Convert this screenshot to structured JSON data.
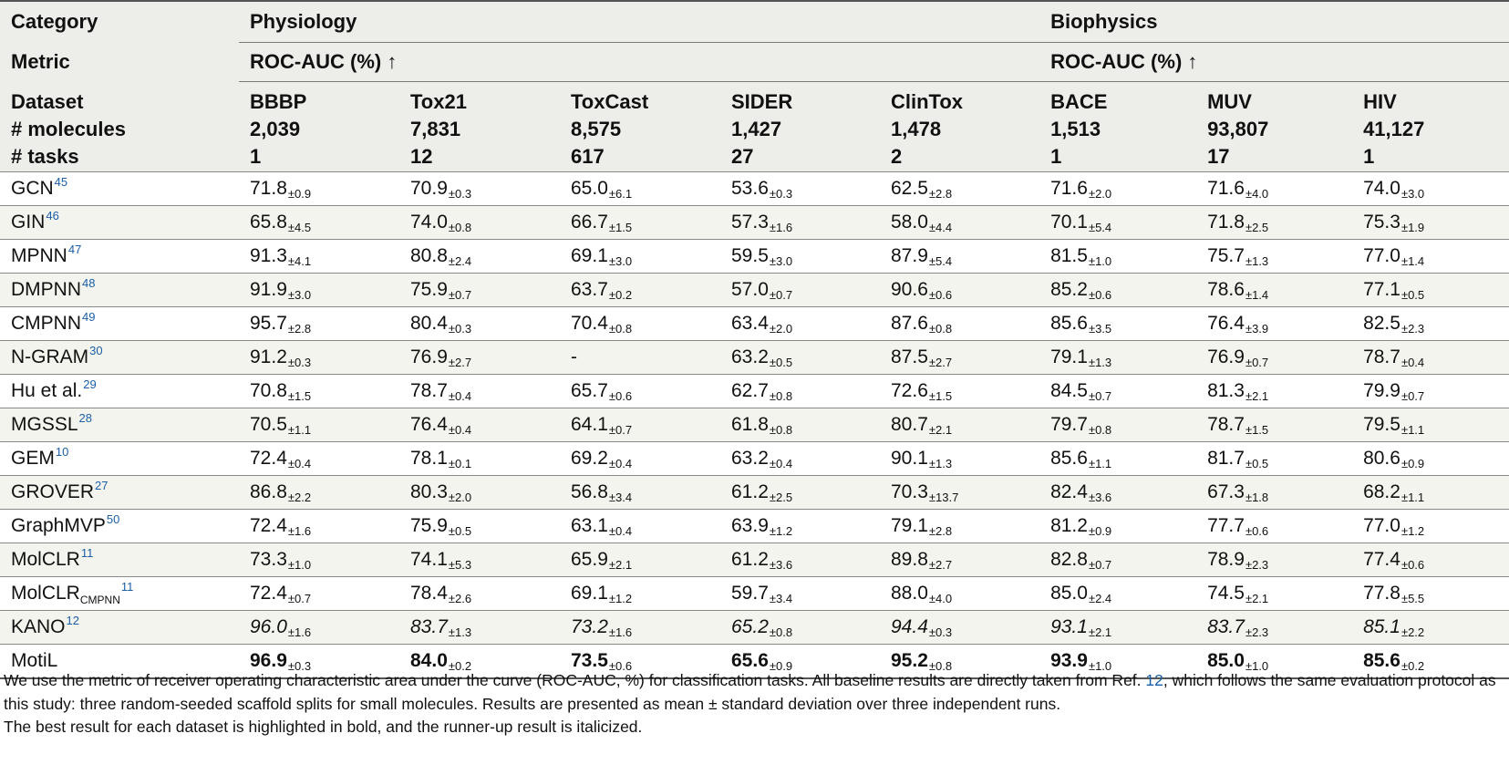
{
  "header": {
    "category_label": "Category",
    "metric_label": "Metric",
    "dataset_label": "Dataset",
    "molecules_label": "# molecules",
    "tasks_label": "# tasks",
    "groups": [
      {
        "name": "Physiology",
        "metric": "ROC-AUC (%) ↑"
      },
      {
        "name": "Biophysics",
        "metric": "ROC-AUC (%) ↑"
      }
    ],
    "datasets": [
      {
        "name": "BBBP",
        "molecules": "2,039",
        "tasks": "1"
      },
      {
        "name": "Tox21",
        "molecules": "7,831",
        "tasks": "12"
      },
      {
        "name": "ToxCast",
        "molecules": "8,575",
        "tasks": "617"
      },
      {
        "name": "SIDER",
        "molecules": "1,427",
        "tasks": "27"
      },
      {
        "name": "ClinTox",
        "molecules": "1,478",
        "tasks": "2"
      },
      {
        "name": "BACE",
        "molecules": "1,513",
        "tasks": "1"
      },
      {
        "name": "MUV",
        "molecules": "93,807",
        "tasks": "17"
      },
      {
        "name": "HIV",
        "molecules": "41,127",
        "tasks": "1"
      }
    ]
  },
  "rows": [
    {
      "model": "GCN",
      "sub": "",
      "ref": "45",
      "cells": [
        [
          "71.8",
          "±0.9"
        ],
        [
          "70.9",
          "±0.3"
        ],
        [
          "65.0",
          "±6.1"
        ],
        [
          "53.6",
          "±0.3"
        ],
        [
          "62.5",
          "±2.8"
        ],
        [
          "71.6",
          "±2.0"
        ],
        [
          "71.6",
          "±4.0"
        ],
        [
          "74.0",
          "±3.0"
        ]
      ]
    },
    {
      "model": "GIN",
      "sub": "",
      "ref": "46",
      "cells": [
        [
          "65.8",
          "±4.5"
        ],
        [
          "74.0",
          "±0.8"
        ],
        [
          "66.7",
          "±1.5"
        ],
        [
          "57.3",
          "±1.6"
        ],
        [
          "58.0",
          "±4.4"
        ],
        [
          "70.1",
          "±5.4"
        ],
        [
          "71.8",
          "±2.5"
        ],
        [
          "75.3",
          "±1.9"
        ]
      ]
    },
    {
      "model": "MPNN",
      "sub": "",
      "ref": "47",
      "cells": [
        [
          "91.3",
          "±4.1"
        ],
        [
          "80.8",
          "±2.4"
        ],
        [
          "69.1",
          "±3.0"
        ],
        [
          "59.5",
          "±3.0"
        ],
        [
          "87.9",
          "±5.4"
        ],
        [
          "81.5",
          "±1.0"
        ],
        [
          "75.7",
          "±1.3"
        ],
        [
          "77.0",
          "±1.4"
        ]
      ]
    },
    {
      "model": "DMPNN",
      "sub": "",
      "ref": "48",
      "cells": [
        [
          "91.9",
          "±3.0"
        ],
        [
          "75.9",
          "±0.7"
        ],
        [
          "63.7",
          "±0.2"
        ],
        [
          "57.0",
          "±0.7"
        ],
        [
          "90.6",
          "±0.6"
        ],
        [
          "85.2",
          "±0.6"
        ],
        [
          "78.6",
          "±1.4"
        ],
        [
          "77.1",
          "±0.5"
        ]
      ]
    },
    {
      "model": "CMPNN",
      "sub": "",
      "ref": "49",
      "cells": [
        [
          "95.7",
          "±2.8"
        ],
        [
          "80.4",
          "±0.3"
        ],
        [
          "70.4",
          "±0.8"
        ],
        [
          "63.4",
          "±2.0"
        ],
        [
          "87.6",
          "±0.8"
        ],
        [
          "85.6",
          "±3.5"
        ],
        [
          "76.4",
          "±3.9"
        ],
        [
          "82.5",
          "±2.3"
        ]
      ]
    },
    {
      "model": "N-GRAM",
      "sub": "",
      "ref": "30",
      "cells": [
        [
          "91.2",
          "±0.3"
        ],
        [
          "76.9",
          "±2.7"
        ],
        [
          "-",
          ""
        ],
        [
          "63.2",
          "±0.5"
        ],
        [
          "87.5",
          "±2.7"
        ],
        [
          "79.1",
          "±1.3"
        ],
        [
          "76.9",
          "±0.7"
        ],
        [
          "78.7",
          "±0.4"
        ]
      ]
    },
    {
      "model": "Hu et al.",
      "sub": "",
      "ref": "29",
      "cells": [
        [
          "70.8",
          "±1.5"
        ],
        [
          "78.7",
          "±0.4"
        ],
        [
          "65.7",
          "±0.6"
        ],
        [
          "62.7",
          "±0.8"
        ],
        [
          "72.6",
          "±1.5"
        ],
        [
          "84.5",
          "±0.7"
        ],
        [
          "81.3",
          "±2.1"
        ],
        [
          "79.9",
          "±0.7"
        ]
      ]
    },
    {
      "model": "MGSSL",
      "sub": "",
      "ref": "28",
      "cells": [
        [
          "70.5",
          "±1.1"
        ],
        [
          "76.4",
          "±0.4"
        ],
        [
          "64.1",
          "±0.7"
        ],
        [
          "61.8",
          "±0.8"
        ],
        [
          "80.7",
          "±2.1"
        ],
        [
          "79.7",
          "±0.8"
        ],
        [
          "78.7",
          "±1.5"
        ],
        [
          "79.5",
          "±1.1"
        ]
      ]
    },
    {
      "model": "GEM",
      "sub": "",
      "ref": "10",
      "cells": [
        [
          "72.4",
          "±0.4"
        ],
        [
          "78.1",
          "±0.1"
        ],
        [
          "69.2",
          "±0.4"
        ],
        [
          "63.2",
          "±0.4"
        ],
        [
          "90.1",
          "±1.3"
        ],
        [
          "85.6",
          "±1.1"
        ],
        [
          "81.7",
          "±0.5"
        ],
        [
          "80.6",
          "±0.9"
        ]
      ]
    },
    {
      "model": "GROVER",
      "sub": "",
      "ref": "27",
      "cells": [
        [
          "86.8",
          "±2.2"
        ],
        [
          "80.3",
          "±2.0"
        ],
        [
          "56.8",
          "±3.4"
        ],
        [
          "61.2",
          "±2.5"
        ],
        [
          "70.3",
          "±13.7"
        ],
        [
          "82.4",
          "±3.6"
        ],
        [
          "67.3",
          "±1.8"
        ],
        [
          "68.2",
          "±1.1"
        ]
      ]
    },
    {
      "model": "GraphMVP",
      "sub": "",
      "ref": "50",
      "cells": [
        [
          "72.4",
          "±1.6"
        ],
        [
          "75.9",
          "±0.5"
        ],
        [
          "63.1",
          "±0.4"
        ],
        [
          "63.9",
          "±1.2"
        ],
        [
          "79.1",
          "±2.8"
        ],
        [
          "81.2",
          "±0.9"
        ],
        [
          "77.7",
          "±0.6"
        ],
        [
          "77.0",
          "±1.2"
        ]
      ]
    },
    {
      "model": "MolCLR",
      "sub": "",
      "ref": "11",
      "cells": [
        [
          "73.3",
          "±1.0"
        ],
        [
          "74.1",
          "±5.3"
        ],
        [
          "65.9",
          "±2.1"
        ],
        [
          "61.2",
          "±3.6"
        ],
        [
          "89.8",
          "±2.7"
        ],
        [
          "82.8",
          "±0.7"
        ],
        [
          "78.9",
          "±2.3"
        ],
        [
          "77.4",
          "±0.6"
        ]
      ]
    },
    {
      "model": "MolCLR",
      "sub": "CMPNN",
      "ref": "11",
      "cells": [
        [
          "72.4",
          "±0.7"
        ],
        [
          "78.4",
          "±2.6"
        ],
        [
          "69.1",
          "±1.2"
        ],
        [
          "59.7",
          "±3.4"
        ],
        [
          "88.0",
          "±4.0"
        ],
        [
          "85.0",
          "±2.4"
        ],
        [
          "74.5",
          "±2.1"
        ],
        [
          "77.8",
          "±5.5"
        ]
      ]
    },
    {
      "model": "KANO",
      "sub": "",
      "ref": "12",
      "style": "ital",
      "cells": [
        [
          "96.0",
          "±1.6"
        ],
        [
          "83.7",
          "±1.3"
        ],
        [
          "73.2",
          "±1.6"
        ],
        [
          "65.2",
          "±0.8"
        ],
        [
          "94.4",
          "±0.3"
        ],
        [
          "93.1",
          "±2.1"
        ],
        [
          "83.7",
          "±2.3"
        ],
        [
          "85.1",
          "±2.2"
        ]
      ]
    },
    {
      "model": "MotiL",
      "sub": "",
      "ref": "",
      "style": "bold",
      "cells": [
        [
          "96.9",
          "±0.3"
        ],
        [
          "84.0",
          "±0.2"
        ],
        [
          "73.5",
          "±0.6"
        ],
        [
          "65.6",
          "±0.9"
        ],
        [
          "95.2",
          "±0.8"
        ],
        [
          "93.9",
          "±1.0"
        ],
        [
          "85.0",
          "±1.0"
        ],
        [
          "85.6",
          "±0.2"
        ]
      ]
    }
  ],
  "footnote": {
    "line1_a": "We use the metric of receiver operating characteristic area under the curve (ROC-AUC, %) for classification tasks. All baseline results are directly taken from Ref. ",
    "line1_ref": "12",
    "line1_b": ", which follows the same evaluation protocol as this study: three random-seeded scaffold splits for small molecules. Results are presented as mean  ± standard deviation over three independent runs.",
    "line2": "The best result for each dataset is highlighted in bold, and the runner-up result is italicized."
  }
}
